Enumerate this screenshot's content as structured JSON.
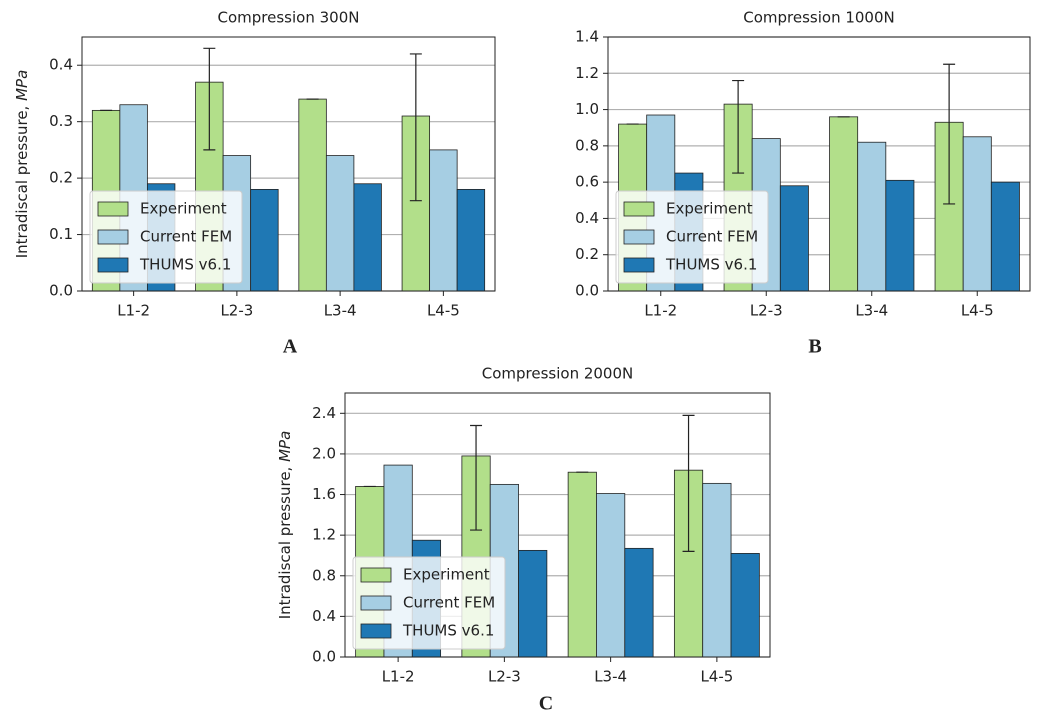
{
  "chart_data": [
    {
      "type": "bar",
      "title": "Compression 300N",
      "ylabel": "Intradiscal pressure, ",
      "ylabel_unit": "MPa",
      "annotation": "A",
      "categories": [
        "L1-2",
        "L2-3",
        "L3-4",
        "L4-5"
      ],
      "series": [
        {
          "name": "Experiment",
          "color": "#b2df8a",
          "values": [
            0.32,
            0.37,
            0.34,
            0.31
          ],
          "error_low": [
            0,
            0.12,
            0,
            0.15
          ],
          "error_high": [
            0,
            0.06,
            0,
            0.11
          ]
        },
        {
          "name": "Current FEM",
          "color": "#a6cee3",
          "values": [
            0.33,
            0.24,
            0.24,
            0.25
          ]
        },
        {
          "name": "THUMS v6.1",
          "color": "#1f78b4",
          "values": [
            0.19,
            0.18,
            0.19,
            0.18
          ]
        }
      ],
      "ylim": [
        0,
        0.45
      ],
      "yticks": [
        {
          "value": 0,
          "label": "0.0"
        },
        0.1,
        0.2,
        0.3,
        0.4
      ],
      "grid": true,
      "legend": "lower left"
    },
    {
      "type": "bar",
      "title": "Compression 1000N",
      "annotation": "B",
      "categories": [
        "L1-2",
        "L2-3",
        "L3-4",
        "L4-5"
      ],
      "series": [
        {
          "name": "Experiment",
          "color": "#b2df8a",
          "values": [
            0.92,
            1.03,
            0.96,
            0.93
          ],
          "error_low": [
            0,
            0.38,
            0,
            0.45
          ],
          "error_high": [
            0,
            0.13,
            0,
            0.32
          ]
        },
        {
          "name": "Current FEM",
          "color": "#a6cee3",
          "values": [
            0.97,
            0.84,
            0.82,
            0.85
          ]
        },
        {
          "name": "THUMS v6.1",
          "color": "#1f78b4",
          "values": [
            0.65,
            0.58,
            0.61,
            0.6
          ]
        }
      ],
      "ylim": [
        0,
        1.4
      ],
      "yticks": [
        {
          "value": 0,
          "label": "0.0"
        },
        0.2,
        0.4,
        0.6,
        0.8,
        {
          "value": 1,
          "label": "1.0"
        },
        1.2,
        1.4
      ],
      "grid": true,
      "legend": "lower left"
    },
    {
      "type": "bar",
      "title": "Compression 2000N",
      "ylabel": "Intradiscal pressure, ",
      "ylabel_unit": "MPa",
      "annotation": "C",
      "categories": [
        "L1-2",
        "L2-3",
        "L3-4",
        "L4-5"
      ],
      "series": [
        {
          "name": "Experiment",
          "color": "#b2df8a",
          "values": [
            1.68,
            1.98,
            1.82,
            1.84
          ],
          "error_low": [
            0,
            0.73,
            0,
            0.8
          ],
          "error_high": [
            0,
            0.3,
            0,
            0.54
          ]
        },
        {
          "name": "Current FEM",
          "color": "#a6cee3",
          "values": [
            1.89,
            1.7,
            1.61,
            1.71
          ]
        },
        {
          "name": "THUMS v6.1",
          "color": "#1f78b4",
          "values": [
            1.15,
            1.05,
            1.07,
            1.02
          ]
        }
      ],
      "ylim": [
        0,
        2.6
      ],
      "yticks": [
        {
          "value": 0,
          "label": "0.0"
        },
        0.4,
        0.8,
        1.2,
        1.6,
        {
          "value": 2,
          "label": "2.0"
        },
        2.4
      ],
      "grid": true,
      "legend": "lower left"
    }
  ]
}
